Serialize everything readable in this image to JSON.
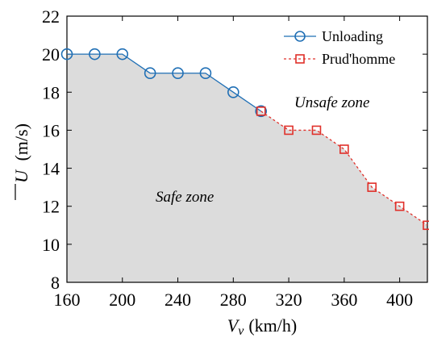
{
  "chart_data": {
    "type": "line",
    "xlabel_main": "V",
    "xlabel_sub": "v",
    "xlabel_unit": "(km/h)",
    "ylabel_main": "U",
    "ylabel_unit": "(m/s)",
    "xlim": [
      160,
      420
    ],
    "ylim": [
      8,
      22
    ],
    "xticks": [
      160,
      200,
      240,
      280,
      320,
      360,
      400
    ],
    "yticks": [
      8,
      10,
      12,
      14,
      16,
      18,
      20,
      22
    ],
    "legend_position": "top-right",
    "grid": false,
    "series": [
      {
        "name": "Unloading",
        "color": "#1f6fb5",
        "marker": "circle",
        "line_style": "solid",
        "x": [
          160,
          180,
          200,
          220,
          240,
          260,
          280,
          300
        ],
        "y": [
          20,
          20,
          20,
          19,
          19,
          19,
          18,
          17
        ]
      },
      {
        "name": "Prud'homme",
        "color": "#e0302a",
        "marker": "square",
        "line_style": "dashed",
        "x": [
          300,
          320,
          340,
          360,
          380,
          400,
          420
        ],
        "y": [
          17,
          16,
          16,
          15,
          13,
          12,
          11
        ]
      }
    ],
    "annotations": {
      "safe_zone": "Safe zone",
      "unsafe_zone": "Unsafe zone"
    },
    "shaded_region_color": "#dcdcdc"
  }
}
